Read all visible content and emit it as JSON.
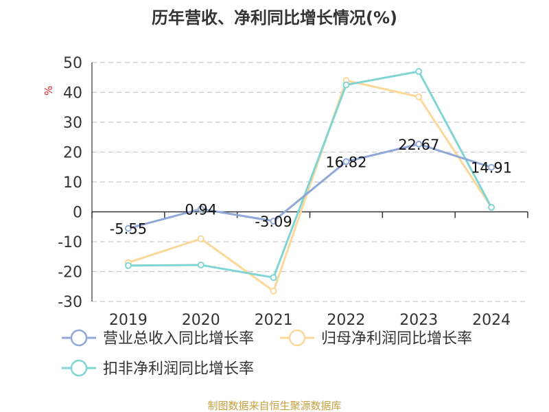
{
  "chart_data": {
    "type": "line",
    "title": "历年营收、净利同比增长情况(%)",
    "ylabel": "%",
    "xlabel": "",
    "categories": [
      "2019",
      "2020",
      "2021",
      "2022",
      "2023",
      "2024"
    ],
    "ylim": [
      -30,
      50
    ],
    "yticks": [
      50,
      40,
      30,
      20,
      10,
      0,
      -10,
      -20,
      -30
    ],
    "grid": true,
    "legend_position": "bottom",
    "series": [
      {
        "name": "营业总收入同比增长率",
        "color": "#8fa8d8",
        "values": [
          -5.55,
          0.94,
          -3.09,
          16.82,
          22.67,
          14.91
        ],
        "labels": [
          "-5.55",
          "0.94",
          "-3.09",
          "16.82",
          "22.67",
          "14.91"
        ]
      },
      {
        "name": "归母净利润同比增长率",
        "color": "#fbd89a",
        "values": [
          -17,
          -9,
          -26.5,
          44,
          38.5,
          1.5
        ]
      },
      {
        "name": "扣非净利润同比增长率",
        "color": "#80d4d4",
        "values": [
          -18,
          -17.8,
          -22,
          42.5,
          47,
          1.5
        ]
      }
    ],
    "source": "制图数据来自恒生聚源数据库"
  }
}
